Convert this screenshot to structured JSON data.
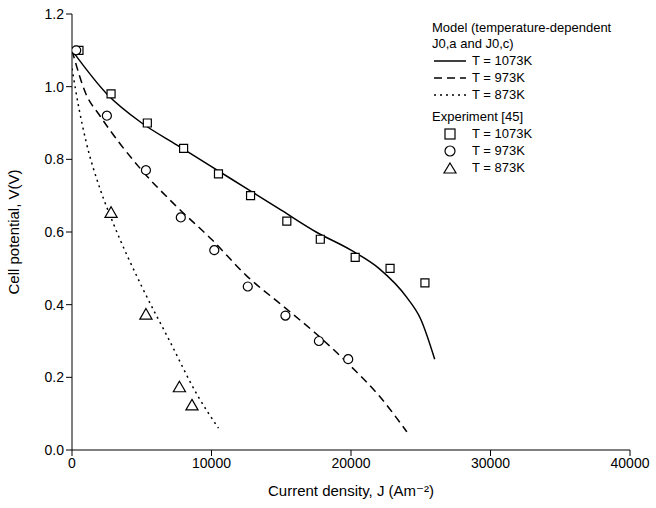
{
  "chart_data": {
    "type": "line",
    "x_label": "Current density, J (Am⁻²)",
    "y_label": "Cell potential, V(V)",
    "xlim": [
      0,
      40000
    ],
    "xticks": [
      0,
      10000,
      20000,
      30000,
      40000
    ],
    "ylim": [
      0,
      1.2
    ],
    "yticks": [
      {
        "value": 0,
        "label": "0.0"
      },
      0.2,
      0.4,
      0.6,
      0.8,
      {
        "value": 1,
        "label": "1.0"
      },
      1.2
    ],
    "grid": false,
    "legend": "upper right",
    "series_groups": [
      {
        "title": "Model (temperature-dependent J0,a and J0,c)",
        "series": [
          {
            "name": "T = 1073K",
            "type": "line",
            "line_style": "solid",
            "color": "#000000",
            "x": [
              0,
              2500,
              5000,
              7500,
              10000,
              12500,
              15000,
              17500,
              20000,
              22000,
              24000,
              25000,
              26000
            ],
            "values": [
              1.1,
              0.98,
              0.9,
              0.84,
              0.78,
              0.72,
              0.66,
              0.6,
              0.55,
              0.5,
              0.42,
              0.36,
              0.25
            ]
          },
          {
            "name": "T = 973K",
            "type": "line",
            "line_style": "dashed",
            "color": "#000000",
            "x": [
              0,
              1000,
              2000,
              5000,
              7500,
              10000,
              12500,
              15000,
              17500,
              20000,
              22000,
              24000
            ],
            "values": [
              1.1,
              0.98,
              0.92,
              0.77,
              0.67,
              0.58,
              0.48,
              0.4,
              0.32,
              0.23,
              0.15,
              0.05
            ]
          },
          {
            "name": "T = 873K",
            "type": "line",
            "line_style": "dotted",
            "color": "#000000",
            "x": [
              0,
              500,
              1000,
              2000,
              3000,
              5000,
              7000,
              9000,
              10500
            ],
            "values": [
              1.05,
              0.94,
              0.85,
              0.72,
              0.62,
              0.45,
              0.3,
              0.15,
              0.06
            ]
          }
        ]
      },
      {
        "title": "Experiment [45]",
        "series": [
          {
            "name": "T = 1073K",
            "type": "scatter",
            "marker": "square",
            "color": "#000000",
            "x": [
              500,
              2800,
              5400,
              8000,
              10500,
              12800,
              15400,
              17800,
              20300,
              22800,
              25300
            ],
            "values": [
              1.1,
              0.98,
              0.9,
              0.83,
              0.76,
              0.7,
              0.63,
              0.58,
              0.53,
              0.5,
              0.46
            ]
          },
          {
            "name": "T = 973K",
            "type": "scatter",
            "marker": "circle",
            "color": "#000000",
            "x": [
              300,
              2500,
              5300,
              7800,
              10200,
              12600,
              15300,
              17700,
              19800
            ],
            "values": [
              1.1,
              0.92,
              0.77,
              0.64,
              0.55,
              0.45,
              0.37,
              0.3,
              0.25
            ]
          },
          {
            "name": "T = 873K",
            "type": "scatter",
            "marker": "triangle",
            "color": "#000000",
            "x": [
              2800,
              5300,
              7700,
              8600
            ],
            "values": [
              0.65,
              0.37,
              0.17,
              0.12
            ]
          }
        ]
      }
    ]
  }
}
